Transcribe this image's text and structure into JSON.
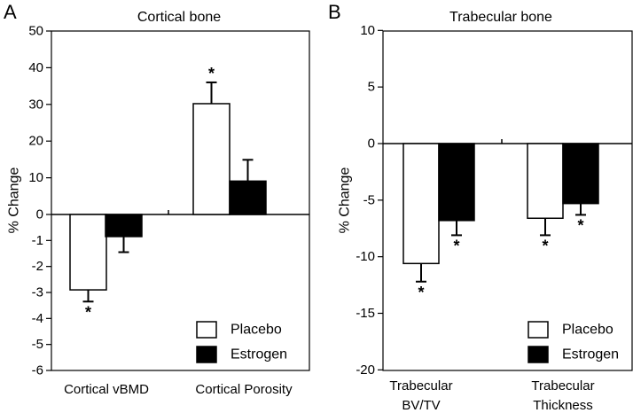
{
  "chart_data": [
    {
      "panel_label": "A",
      "type": "bar",
      "title": "Cortical bone",
      "ylabel": "% Change",
      "xlabel": "",
      "note": "Broken axis: positive region scaled 0 to 50, negative region scaled 0 to -6",
      "yticks": [
        {
          "value": 50,
          "label": "50"
        },
        {
          "value": 40,
          "label": "40"
        },
        {
          "value": 30,
          "label": "30"
        },
        {
          "value": 20,
          "label": "20"
        },
        {
          "value": 10,
          "label": "10"
        },
        {
          "value": 0,
          "label": "0"
        },
        {
          "value": -1,
          "label": "-1"
        },
        {
          "value": -2,
          "label": "-2"
        },
        {
          "value": -3,
          "label": "-3"
        },
        {
          "value": -4,
          "label": "-4"
        },
        {
          "value": -5,
          "label": "-5"
        },
        {
          "value": -6,
          "label": "-6"
        }
      ],
      "categories": [
        "Cortical vBMD",
        "Cortical Porosity"
      ],
      "series": [
        {
          "name": "Placebo",
          "color": "#ffffff",
          "values": [
            -2.9,
            30.2
          ],
          "errors": [
            0.45,
            5.8
          ],
          "significant": [
            true,
            true
          ]
        },
        {
          "name": "Estrogen",
          "color": "#000000",
          "values": [
            -0.85,
            9.1
          ],
          "errors": [
            0.6,
            5.8
          ],
          "significant": [
            false,
            false
          ]
        }
      ],
      "significance_marker": "*",
      "legend": {
        "position": "bottom-right",
        "entries": [
          "Placebo",
          "Estrogen"
        ]
      }
    },
    {
      "panel_label": "B",
      "type": "bar",
      "title": "Trabecular bone",
      "ylabel": "% Change",
      "xlabel": "",
      "ylim": [
        -20,
        10
      ],
      "yticks": [
        {
          "value": 10,
          "label": "10"
        },
        {
          "value": 5,
          "label": "5"
        },
        {
          "value": 0,
          "label": "0"
        },
        {
          "value": -5,
          "label": "-5"
        },
        {
          "value": -10,
          "label": "-10"
        },
        {
          "value": -15,
          "label": "-15"
        },
        {
          "value": -20,
          "label": "-20"
        }
      ],
      "categories": [
        {
          "lines": [
            "Trabecular",
            "BV/TV"
          ]
        },
        {
          "lines": [
            "Trabecular",
            "Thickness"
          ]
        }
      ],
      "series": [
        {
          "name": "Placebo",
          "color": "#ffffff",
          "values": [
            -10.6,
            -6.6
          ],
          "errors": [
            1.6,
            1.5
          ],
          "significant": [
            true,
            true
          ]
        },
        {
          "name": "Estrogen",
          "color": "#000000",
          "values": [
            -6.8,
            -5.3
          ],
          "errors": [
            1.3,
            1.0
          ],
          "significant": [
            true,
            true
          ]
        }
      ],
      "significance_marker": "*",
      "legend": {
        "position": "bottom-right",
        "entries": [
          "Placebo",
          "Estrogen"
        ]
      }
    }
  ]
}
